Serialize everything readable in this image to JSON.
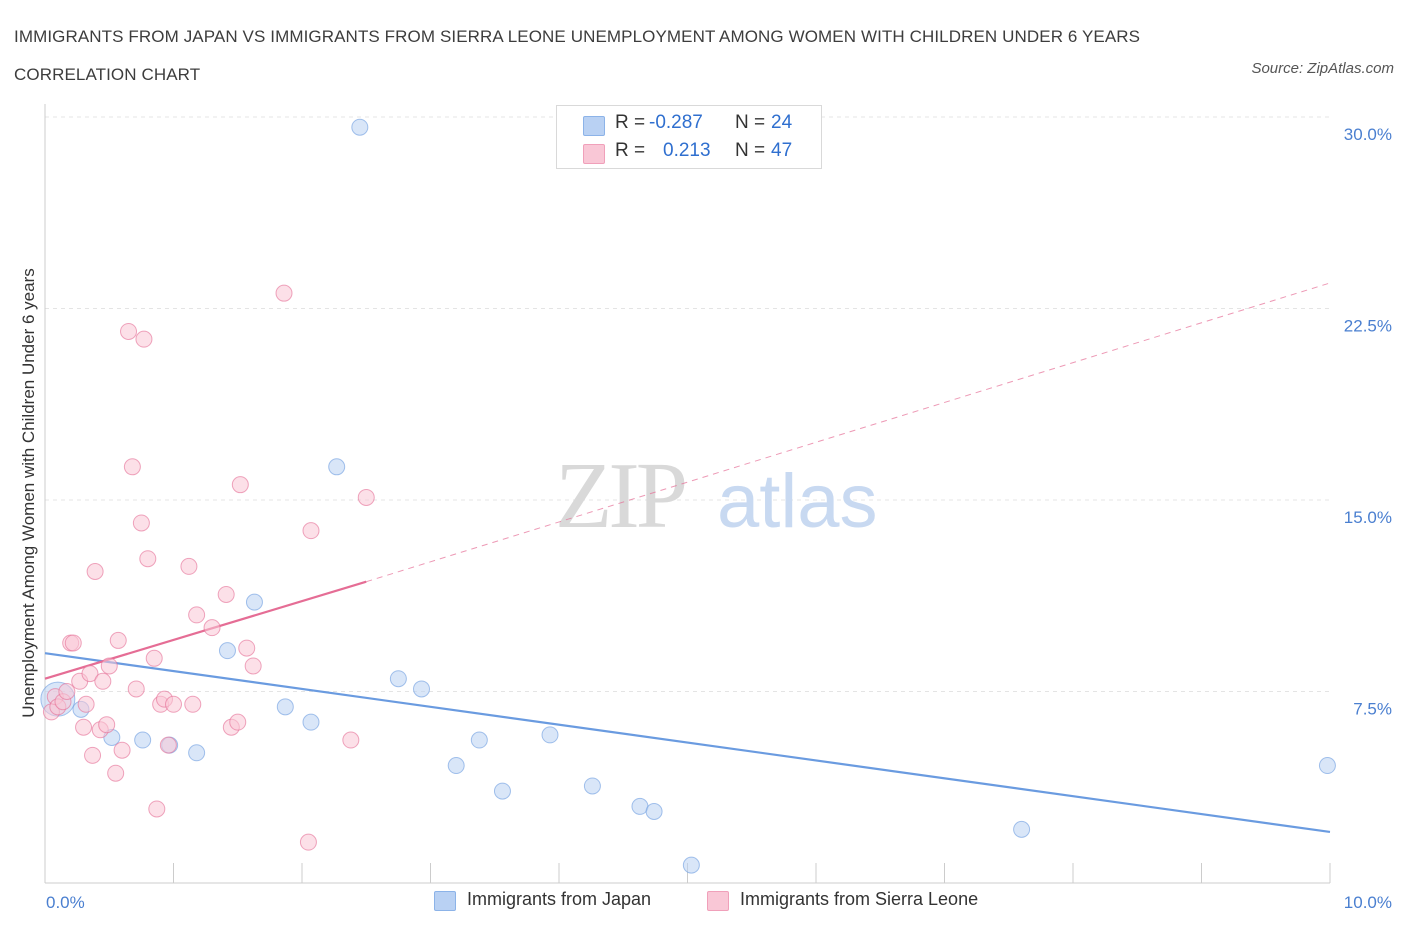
{
  "title": "IMMIGRANTS FROM JAPAN VS IMMIGRANTS FROM SIERRA LEONE UNEMPLOYMENT AMONG WOMEN WITH CHILDREN UNDER 6 YEARS CORRELATION CHART",
  "source": "Source: ZipAtlas.com",
  "watermark": {
    "zip": "ZIP",
    "atlas": "atlas"
  },
  "legend": {
    "rows": [
      {
        "r_label": "R =",
        "r_value": "-0.287",
        "n_label": "N =",
        "n_value": "24",
        "color": "#b9d1f3",
        "border": "#8cb3e8"
      },
      {
        "r_label": "R =",
        "r_value": "0.213",
        "n_label": "N =",
        "n_value": "47",
        "color": "#f9c7d6",
        "border": "#f0a0ba"
      }
    ]
  },
  "bottom_legend": [
    {
      "label": "Immigrants from Japan",
      "color": "#b9d1f3",
      "border": "#8cb3e8"
    },
    {
      "label": "Immigrants from Sierra Leone",
      "color": "#f9c7d6",
      "border": "#f0a0ba"
    }
  ],
  "chart_data": {
    "type": "scatter",
    "title": "IMMIGRANTS FROM JAPAN VS IMMIGRANTS FROM SIERRA LEONE UNEMPLOYMENT AMONG WOMEN WITH CHILDREN UNDER 6 YEARS CORRELATION CHART",
    "xlabel": "",
    "ylabel": "Unemployment Among Women with Children Under 6 years",
    "xlim": [
      0,
      10
    ],
    "ylim": [
      0,
      30
    ],
    "x_tick_labels": [
      "0.0%",
      "10.0%"
    ],
    "y_ticks": [
      7.5,
      15.0,
      22.5,
      30.0
    ],
    "y_tick_labels": [
      "7.5%",
      "15.0%",
      "22.5%",
      "30.0%"
    ],
    "grid": true,
    "series": [
      {
        "name": "Immigrants from Japan",
        "color": "#6a9be0",
        "fill": "#b9d1f3",
        "trend": {
          "x": [
            0.0,
            10.0
          ],
          "y": [
            9.0,
            2.0
          ],
          "style": "solid"
        },
        "points": [
          {
            "x": 0.1,
            "y": 7.2,
            "big": true
          },
          {
            "x": 0.28,
            "y": 6.8
          },
          {
            "x": 0.52,
            "y": 5.7
          },
          {
            "x": 0.76,
            "y": 5.6
          },
          {
            "x": 0.97,
            "y": 5.4
          },
          {
            "x": 1.18,
            "y": 5.1
          },
          {
            "x": 1.42,
            "y": 9.1
          },
          {
            "x": 1.63,
            "y": 11.0
          },
          {
            "x": 1.87,
            "y": 6.9
          },
          {
            "x": 2.07,
            "y": 6.3
          },
          {
            "x": 2.27,
            "y": 16.3
          },
          {
            "x": 2.45,
            "y": 29.6
          },
          {
            "x": 2.75,
            "y": 8.0
          },
          {
            "x": 2.93,
            "y": 7.6
          },
          {
            "x": 3.2,
            "y": 4.6
          },
          {
            "x": 3.38,
            "y": 5.6
          },
          {
            "x": 3.56,
            "y": 3.6
          },
          {
            "x": 3.93,
            "y": 5.8
          },
          {
            "x": 4.26,
            "y": 3.8
          },
          {
            "x": 4.63,
            "y": 3.0
          },
          {
            "x": 4.74,
            "y": 2.8
          },
          {
            "x": 5.03,
            "y": 0.7
          },
          {
            "x": 7.6,
            "y": 2.1
          },
          {
            "x": 9.98,
            "y": 4.6
          }
        ]
      },
      {
        "name": "Immigrants from Sierra Leone",
        "color": "#e56d95",
        "fill": "#f9c7d6",
        "trend": {
          "x": [
            0.0,
            2.5
          ],
          "y": [
            8.0,
            11.8
          ],
          "style": "solid",
          "extended": {
            "x": [
              2.5,
              10.0
            ],
            "y": [
              11.8,
              23.5
            ],
            "style": "dashed"
          }
        },
        "points": [
          {
            "x": 0.05,
            "y": 6.7
          },
          {
            "x": 0.08,
            "y": 7.3
          },
          {
            "x": 0.1,
            "y": 6.9
          },
          {
            "x": 0.14,
            "y": 7.1
          },
          {
            "x": 0.17,
            "y": 7.5
          },
          {
            "x": 0.2,
            "y": 9.4
          },
          {
            "x": 0.22,
            "y": 9.4
          },
          {
            "x": 0.27,
            "y": 7.9
          },
          {
            "x": 0.3,
            "y": 6.1
          },
          {
            "x": 0.32,
            "y": 7.0
          },
          {
            "x": 0.35,
            "y": 8.2
          },
          {
            "x": 0.37,
            "y": 5.0
          },
          {
            "x": 0.39,
            "y": 12.2
          },
          {
            "x": 0.43,
            "y": 6.0
          },
          {
            "x": 0.45,
            "y": 7.9
          },
          {
            "x": 0.48,
            "y": 6.2
          },
          {
            "x": 0.5,
            "y": 8.5
          },
          {
            "x": 0.55,
            "y": 4.3
          },
          {
            "x": 0.57,
            "y": 9.5
          },
          {
            "x": 0.6,
            "y": 5.2
          },
          {
            "x": 0.65,
            "y": 21.6
          },
          {
            "x": 0.68,
            "y": 16.3
          },
          {
            "x": 0.71,
            "y": 7.6
          },
          {
            "x": 0.75,
            "y": 14.1
          },
          {
            "x": 0.77,
            "y": 21.3
          },
          {
            "x": 0.8,
            "y": 12.7
          },
          {
            "x": 0.85,
            "y": 8.8
          },
          {
            "x": 0.87,
            "y": 2.9
          },
          {
            "x": 0.9,
            "y": 7.0
          },
          {
            "x": 0.93,
            "y": 7.2
          },
          {
            "x": 0.96,
            "y": 5.4
          },
          {
            "x": 1.0,
            "y": 7.0
          },
          {
            "x": 1.12,
            "y": 12.4
          },
          {
            "x": 1.15,
            "y": 7.0
          },
          {
            "x": 1.18,
            "y": 10.5
          },
          {
            "x": 1.3,
            "y": 10.0
          },
          {
            "x": 1.41,
            "y": 11.3
          },
          {
            "x": 1.45,
            "y": 6.1
          },
          {
            "x": 1.5,
            "y": 6.3
          },
          {
            "x": 1.52,
            "y": 15.6
          },
          {
            "x": 1.57,
            "y": 9.2
          },
          {
            "x": 1.62,
            "y": 8.5
          },
          {
            "x": 1.86,
            "y": 23.1
          },
          {
            "x": 2.05,
            "y": 1.6
          },
          {
            "x": 2.07,
            "y": 13.8
          },
          {
            "x": 2.38,
            "y": 5.6
          },
          {
            "x": 2.5,
            "y": 15.1
          }
        ]
      }
    ]
  }
}
